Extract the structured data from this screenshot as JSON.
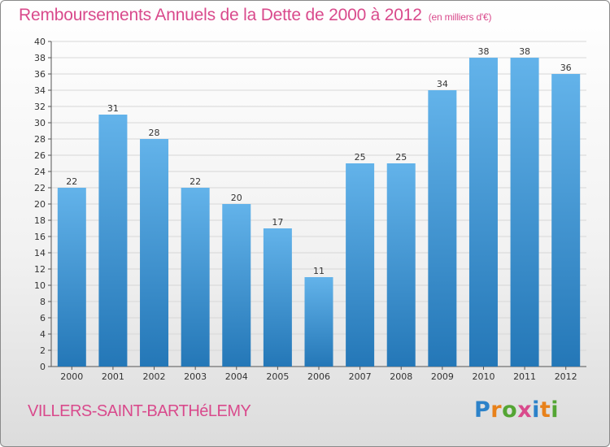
{
  "title": "Remboursements Annuels de la Dette de 2000 à 2012",
  "subtitle": "(en milliers d'€)",
  "commune": "VILLERS-SAINT-BARTHéLEMY",
  "logo": {
    "letters": [
      "P",
      "r",
      "o",
      "x",
      "i",
      "t",
      "i"
    ],
    "colors": [
      "#2c82c9",
      "#e8811a",
      "#54a534",
      "#d94a8c",
      "#2c82c9",
      "#e8811a",
      "#54a534"
    ]
  },
  "colors": {
    "bar_top": "#63b3ea",
    "bar_bottom": "#2477b7",
    "title": "#d94a8c",
    "grid": "#d7d7d7"
  },
  "chart_data": {
    "type": "bar",
    "categories": [
      "2000",
      "2001",
      "2002",
      "2003",
      "2004",
      "2005",
      "2006",
      "2007",
      "2008",
      "2009",
      "2010",
      "2011",
      "2012"
    ],
    "values": [
      22,
      31,
      28,
      22,
      20,
      17,
      11,
      25,
      25,
      34,
      38,
      38,
      36
    ],
    "data_labels": [
      "22",
      "31",
      "28",
      "22",
      "20",
      "17",
      "11",
      "25",
      "25",
      "34",
      "38",
      "38",
      "36"
    ],
    "ylim": [
      0,
      40
    ],
    "yticks": [
      0,
      2,
      4,
      6,
      8,
      10,
      12,
      14,
      16,
      18,
      20,
      22,
      24,
      26,
      28,
      30,
      32,
      34,
      36,
      38,
      40
    ],
    "grid": true
  }
}
